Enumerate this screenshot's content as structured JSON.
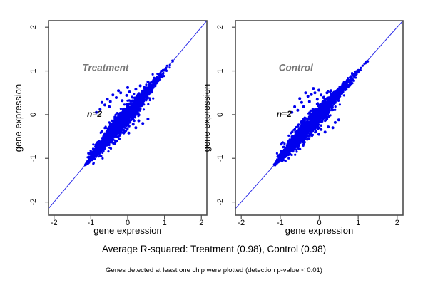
{
  "figure": {
    "caption": "Average R-squared: Treatment (0.98), Control (0.98)",
    "footnote": "Genes detected at least one chip were plotted (detection p-value < 0.01)"
  },
  "colors": {
    "point": "#0000EE",
    "identity_line": "#2B2BE8",
    "box": "#4D4D4D",
    "plot_title": "#777777",
    "annotation": "#111111",
    "axis_text": "#000000",
    "background": "#FFFFFF"
  },
  "chart_data": [
    {
      "type": "scatter",
      "name": "treatment-panel",
      "title": "Treatment",
      "annotation": "n=2",
      "xlabel": "gene expression",
      "ylabel": "gene expression",
      "xlim": [
        -2.15,
        2.15
      ],
      "ylim": [
        -2.3,
        2.15
      ],
      "xticks": [
        -2,
        -1,
        0,
        1,
        2
      ],
      "yticks": [
        -2,
        -1,
        0,
        1,
        2
      ],
      "identity_line": true,
      "avg_r_squared": 0.98,
      "title_pos": [
        -0.6,
        1.0
      ],
      "annotation_pos": [
        -0.9,
        -0.05
      ],
      "cloud": {
        "seed": 42,
        "n": 2300,
        "along_mean": -0.2,
        "along_sd": 0.5,
        "t_min": -1.16,
        "t_max": 1.27,
        "perp_sd": 0.05,
        "bulge": 1.3,
        "bulge_center": -0.15,
        "bulge_width": 0.6,
        "wide_prob": 0.07,
        "wide_mult": 2.4,
        "perp_max": 0.32
      },
      "outliers_above": [
        [
          -0.19,
          0.5
        ],
        [
          -0.03,
          0.44
        ],
        [
          -0.31,
          0.39
        ],
        [
          -0.47,
          0.3
        ],
        [
          -0.62,
          0.22
        ],
        [
          -0.75,
          0.12
        ],
        [
          0.22,
          0.58
        ],
        [
          0.34,
          0.66
        ],
        [
          -0.55,
          0.35
        ],
        [
          -0.4,
          0.45
        ],
        [
          0.05,
          0.52
        ],
        [
          -0.15,
          0.32
        ],
        [
          -0.7,
          0.28
        ],
        [
          -0.85,
          0.05
        ],
        [
          0.12,
          0.4
        ],
        [
          0.45,
          0.62
        ],
        [
          -0.25,
          0.55
        ],
        [
          -0.5,
          0.18
        ],
        [
          0.55,
          0.75
        ],
        [
          0.0,
          0.62
        ]
      ],
      "outliers_below": [
        [
          0.41,
          -0.2
        ],
        [
          0.22,
          -0.3
        ],
        [
          0.03,
          -0.42
        ],
        [
          0.55,
          -0.1
        ],
        [
          0.3,
          -0.14
        ],
        [
          -0.1,
          -0.36
        ],
        [
          0.15,
          -0.22
        ],
        [
          -0.23,
          -0.55
        ]
      ]
    },
    {
      "type": "scatter",
      "name": "control-panel",
      "title": "Control",
      "annotation": "n=2",
      "xlabel": "gene expression",
      "ylabel": "gene expression",
      "xlim": [
        -2.15,
        2.15
      ],
      "ylim": [
        -2.3,
        2.15
      ],
      "xticks": [
        -2,
        -1,
        0,
        1,
        2
      ],
      "yticks": [
        -2,
        -1,
        0,
        1,
        2
      ],
      "identity_line": true,
      "avg_r_squared": 0.98,
      "title_pos": [
        -0.6,
        1.0
      ],
      "annotation_pos": [
        -0.9,
        -0.05
      ],
      "cloud": {
        "seed": 1337,
        "n": 2300,
        "along_mean": -0.22,
        "along_sd": 0.5,
        "t_min": -1.15,
        "t_max": 1.24,
        "perp_sd": 0.05,
        "bulge": 1.2,
        "bulge_center": -0.2,
        "bulge_width": 0.6,
        "wide_prob": 0.07,
        "wide_mult": 2.4,
        "perp_max": 0.3
      },
      "outliers_above": [
        [
          -0.63,
          0.18
        ],
        [
          -0.5,
          0.37
        ],
        [
          -0.29,
          0.42
        ],
        [
          -0.01,
          0.56
        ],
        [
          -0.11,
          0.5
        ],
        [
          0.11,
          0.39
        ],
        [
          -0.45,
          0.28
        ],
        [
          -0.35,
          0.5
        ],
        [
          -0.2,
          0.46
        ],
        [
          -0.55,
          0.1
        ],
        [
          -0.7,
          0.05
        ],
        [
          0.05,
          0.45
        ],
        [
          -0.25,
          0.3
        ],
        [
          -0.4,
          0.18
        ],
        [
          0.2,
          0.5
        ],
        [
          -0.15,
          0.6
        ],
        [
          -0.05,
          0.35
        ],
        [
          0.3,
          0.55
        ]
      ],
      "outliers_below": [
        [
          -0.01,
          -0.45
        ],
        [
          0.23,
          -0.28
        ],
        [
          0.41,
          -0.18
        ],
        [
          0.05,
          -0.34
        ],
        [
          0.15,
          -0.4
        ],
        [
          0.35,
          -0.3
        ],
        [
          -0.15,
          -0.25
        ],
        [
          0.5,
          -0.12
        ]
      ]
    }
  ]
}
